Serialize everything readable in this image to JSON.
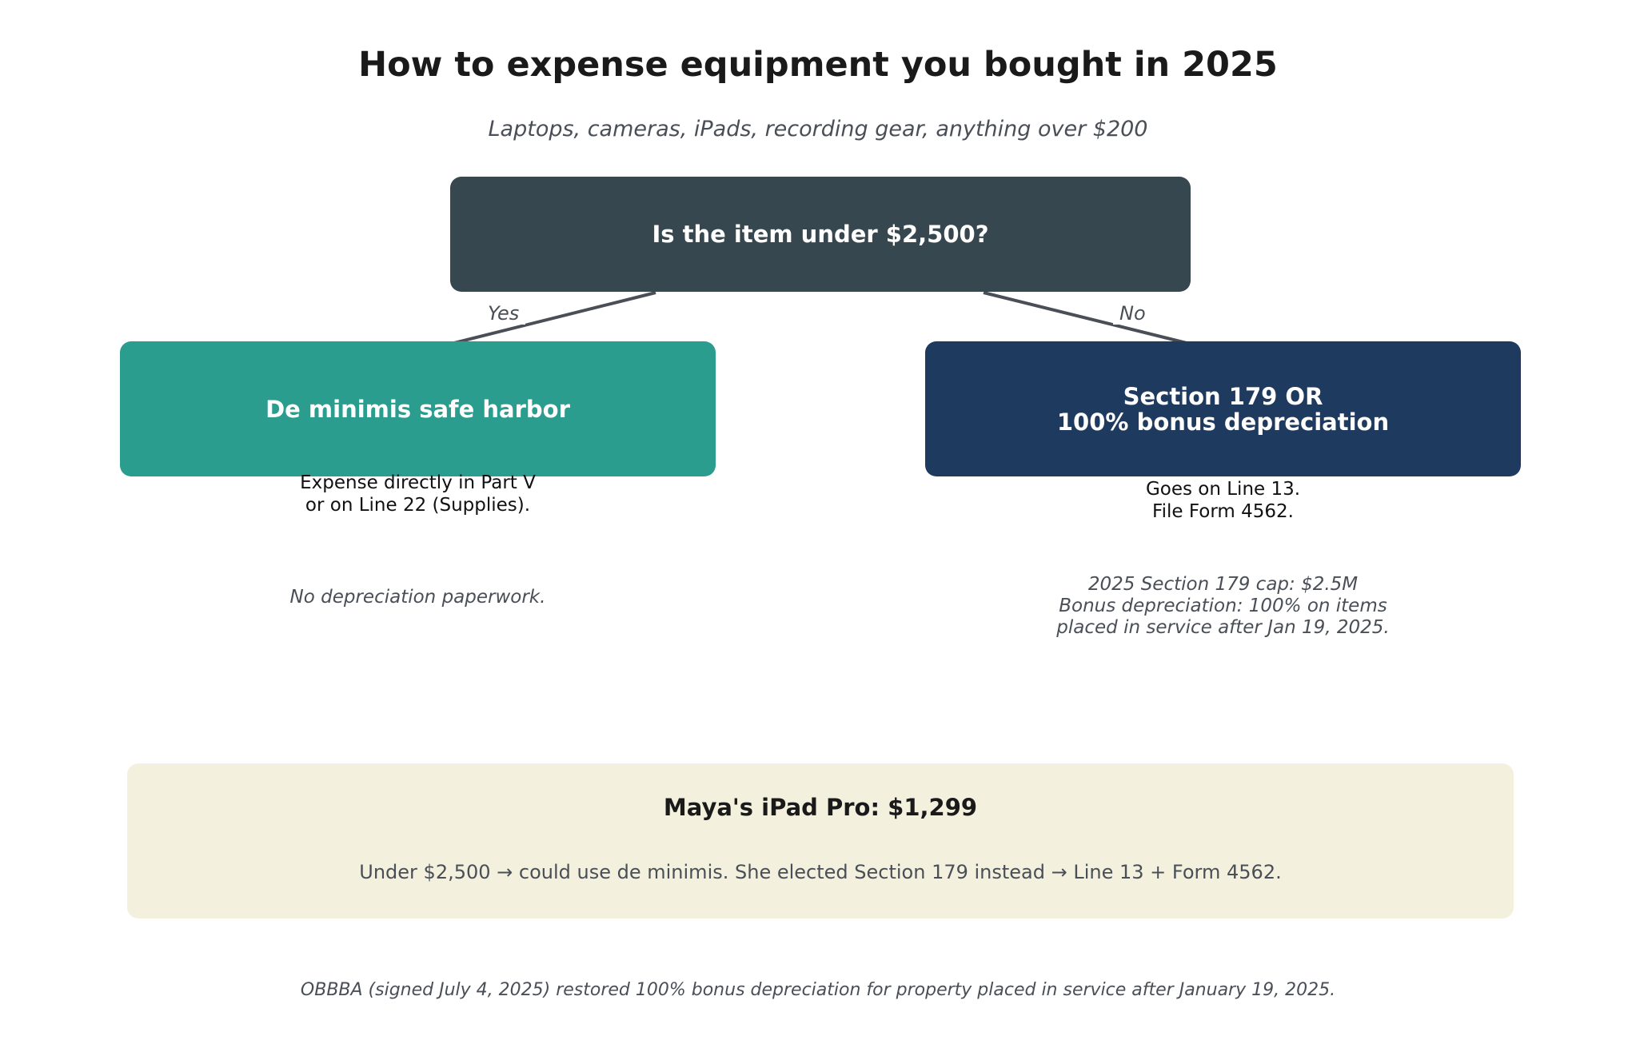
{
  "header": {
    "title": "How to expense equipment you bought in 2025",
    "subtitle": "Laptops, cameras, iPads, recording gear, anything over $200"
  },
  "decision": {
    "question": "Is the item under $2,500?",
    "yes_label": "Yes",
    "no_label": "No"
  },
  "yes_branch": {
    "title": "De minimis safe harbor",
    "description": "Expense directly in Part V\nor on Line 22 (Supplies).",
    "note": "No depreciation paperwork."
  },
  "no_branch": {
    "title": "Section 179 OR\n100% bonus depreciation",
    "description": "Goes on Line 13.\nFile Form 4562.",
    "note": "2025 Section 179 cap: $2.5M\nBonus depreciation: 100% on items\nplaced in service after Jan 19, 2025."
  },
  "example": {
    "title": "Maya's iPad Pro: $1,299",
    "text": "Under $2,500 → could use de minimis. She elected Section 179 instead → Line 13 + Form 4562."
  },
  "footnote": "OBBBA (signed July 4, 2025) restored 100% bonus depreciation for property placed in service after January 19, 2025.",
  "colors": {
    "question_box": "#37474f",
    "yes_box": "#2a9d8f",
    "no_box": "#1f3a5f",
    "example_box": "#f3f0de",
    "arrow": "#4a4f57"
  }
}
